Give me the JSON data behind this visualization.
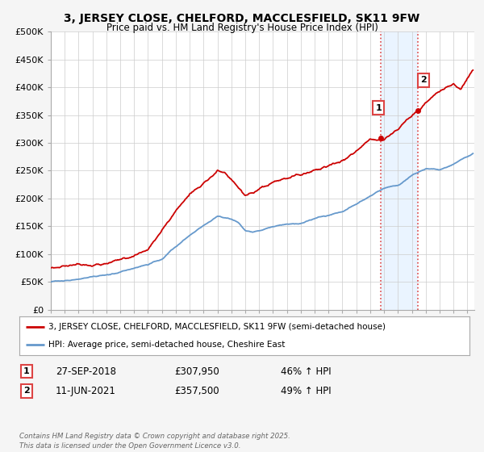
{
  "title_line1": "3, JERSEY CLOSE, CHELFORD, MACCLESFIELD, SK11 9FW",
  "title_line2": "Price paid vs. HM Land Registry's House Price Index (HPI)",
  "ylabel_ticks": [
    "£0",
    "£50K",
    "£100K",
    "£150K",
    "£200K",
    "£250K",
    "£300K",
    "£350K",
    "£400K",
    "£450K",
    "£500K"
  ],
  "ytick_values": [
    0,
    50000,
    100000,
    150000,
    200000,
    250000,
    300000,
    350000,
    400000,
    450000,
    500000
  ],
  "property_color": "#cc0000",
  "hpi_color": "#6699cc",
  "background_color": "#f5f5f5",
  "plot_bg_color": "#ffffff",
  "legend_label_property": "3, JERSEY CLOSE, CHELFORD, MACCLESFIELD, SK11 9FW (semi-detached house)",
  "legend_label_hpi": "HPI: Average price, semi-detached house, Cheshire East",
  "annotation1_label": "1",
  "annotation1_date": "27-SEP-2018",
  "annotation1_price": "£307,950",
  "annotation1_hpi": "46% ↑ HPI",
  "annotation1_year": 2018.75,
  "annotation1_value": 307950,
  "annotation2_label": "2",
  "annotation2_date": "11-JUN-2021",
  "annotation2_price": "£357,500",
  "annotation2_hpi": "49% ↑ HPI",
  "annotation2_year": 2021.44,
  "annotation2_value": 357500,
  "footer_text": "Contains HM Land Registry data © Crown copyright and database right 2025.\nThis data is licensed under the Open Government Licence v3.0.",
  "grid_color": "#cccccc",
  "vline_color": "#dd4444",
  "prop_anchors_x": [
    1995,
    1996,
    1997,
    1998,
    1999,
    2000,
    2001,
    2002,
    2003,
    2004,
    2005,
    2006,
    2007,
    2007.5,
    2008,
    2008.5,
    2009,
    2010,
    2011,
    2012,
    2013,
    2014,
    2015,
    2016,
    2017,
    2018,
    2018.75,
    2019,
    2020,
    2021,
    2021.44,
    2022,
    2023,
    2024,
    2024.5,
    2025.4
  ],
  "prop_anchors_y": [
    75000,
    80000,
    85000,
    88000,
    90000,
    95000,
    105000,
    115000,
    150000,
    185000,
    215000,
    235000,
    260000,
    255000,
    240000,
    225000,
    210000,
    215000,
    225000,
    230000,
    235000,
    245000,
    255000,
    265000,
    285000,
    305000,
    307950,
    310000,
    325000,
    350000,
    357500,
    370000,
    390000,
    405000,
    395000,
    430000
  ],
  "hpi_anchors_x": [
    1995,
    1996,
    1997,
    1998,
    1999,
    2000,
    2001,
    2002,
    2003,
    2004,
    2005,
    2006,
    2007,
    2008,
    2008.5,
    2009,
    2009.5,
    2010,
    2011,
    2012,
    2013,
    2014,
    2015,
    2016,
    2017,
    2018,
    2019,
    2020,
    2021,
    2022,
    2023,
    2024,
    2025.4
  ],
  "hpi_anchors_y": [
    50000,
    52000,
    55000,
    58000,
    60000,
    65000,
    72000,
    78000,
    90000,
    110000,
    130000,
    148000,
    165000,
    160000,
    155000,
    140000,
    138000,
    142000,
    148000,
    152000,
    155000,
    162000,
    168000,
    175000,
    188000,
    202000,
    215000,
    220000,
    238000,
    250000,
    248000,
    258000,
    278000
  ]
}
